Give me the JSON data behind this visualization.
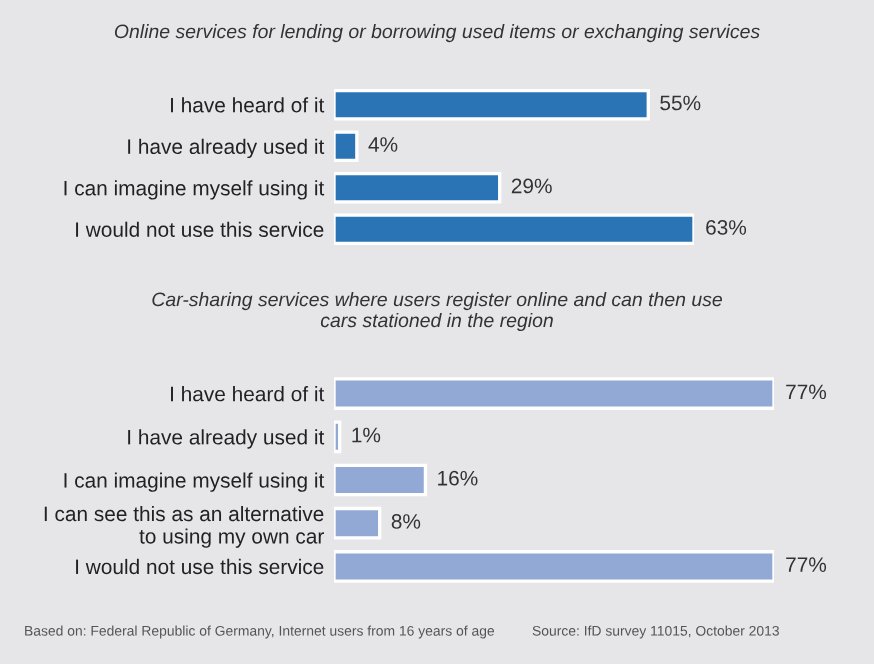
{
  "chart_data": [
    {
      "type": "bar",
      "orientation": "horizontal",
      "title": "Online services for lending or borrowing used items or exchanging services",
      "categories": [
        "I have heard of it",
        "I have already used it",
        "I can imagine myself using it",
        "I would not use this service"
      ],
      "values": [
        55,
        4,
        29,
        63
      ],
      "color": "#2a74b6",
      "value_labels": [
        "55%",
        "4%",
        "29%",
        "63%"
      ],
      "tick_labels": false,
      "grid": false,
      "legend": false
    },
    {
      "type": "bar",
      "orientation": "horizontal",
      "title": "Car-sharing services where users register online and can then use\ncars stationed in the region",
      "categories": [
        "I have heard of it",
        "I have already used it",
        "I can imagine myself using it",
        "I can see this as an alternative\nto using my own car",
        "I would not use this service"
      ],
      "values": [
        77,
        1,
        16,
        8,
        77
      ],
      "color": "#92a9d5",
      "value_labels": [
        "77%",
        "1%",
        "16%",
        "8%",
        "77%"
      ],
      "tick_labels": false,
      "grid": false,
      "legend": false,
      "annotations": [
        "Based on: Federal Republic of Germany, Internet users from 16 years of age",
        "Source: IfD survey 11015, October 2013"
      ]
    }
  ]
}
